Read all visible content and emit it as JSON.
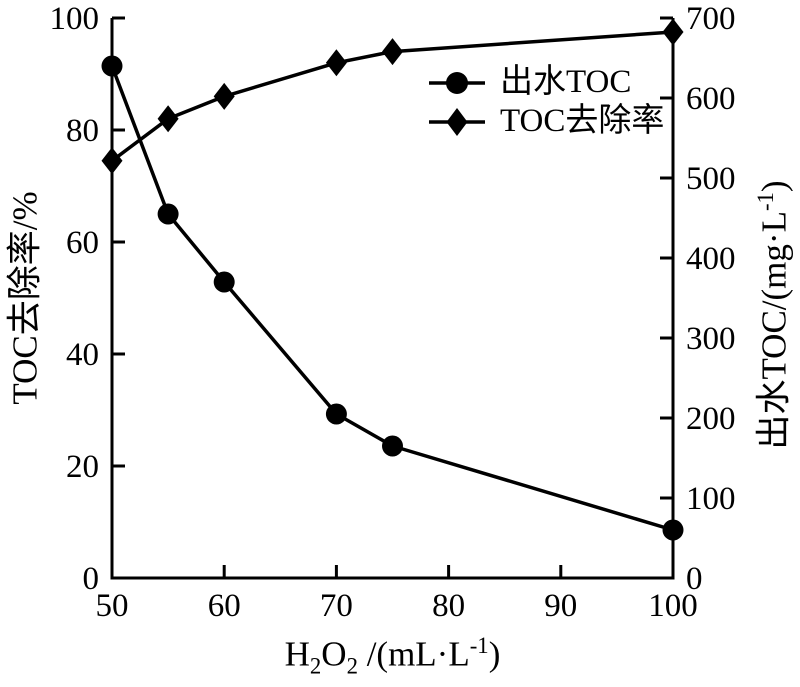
{
  "chart_data": {
    "type": "line",
    "x": [
      50,
      55,
      60,
      70,
      75,
      100
    ],
    "series": [
      {
        "name": "出水TOC",
        "axis": "right",
        "marker": "circle",
        "values": [
          640,
          455,
          370,
          205,
          165,
          60
        ]
      },
      {
        "name": "TOC去除率",
        "axis": "left",
        "marker": "diamond",
        "values": [
          74.5,
          82,
          86,
          92,
          94,
          97.5
        ]
      }
    ],
    "xlabel": "H₂O₂ /(mL·L⁻¹)",
    "xlabel_parts": {
      "t1": "H",
      "s1": "2",
      "t2": "O",
      "s2": "2",
      "t3": " /(mL·L",
      "sup": "-1",
      "t4": ")"
    },
    "ylabel_left": "TOC去除率/%",
    "ylabel_right": "出水TOC/(mg·L⁻¹)",
    "ylabel_right_parts": {
      "t1": "出水TOC/(mg·L",
      "sup": "-1",
      "t2": ")"
    },
    "xlim": [
      50,
      100
    ],
    "x_ticks": [
      50,
      60,
      70,
      80,
      90,
      100
    ],
    "ylim_left": [
      0,
      100
    ],
    "y_left_ticks": [
      0,
      20,
      40,
      60,
      80,
      100
    ],
    "ylim_right": [
      0,
      700
    ],
    "y_right_ticks": [
      0,
      100,
      200,
      300,
      400,
      500,
      600,
      700
    ],
    "grid": false,
    "legend": {
      "position": "upper-right-inside"
    },
    "colors": {
      "foreground": "#000000",
      "background": "#ffffff"
    }
  }
}
